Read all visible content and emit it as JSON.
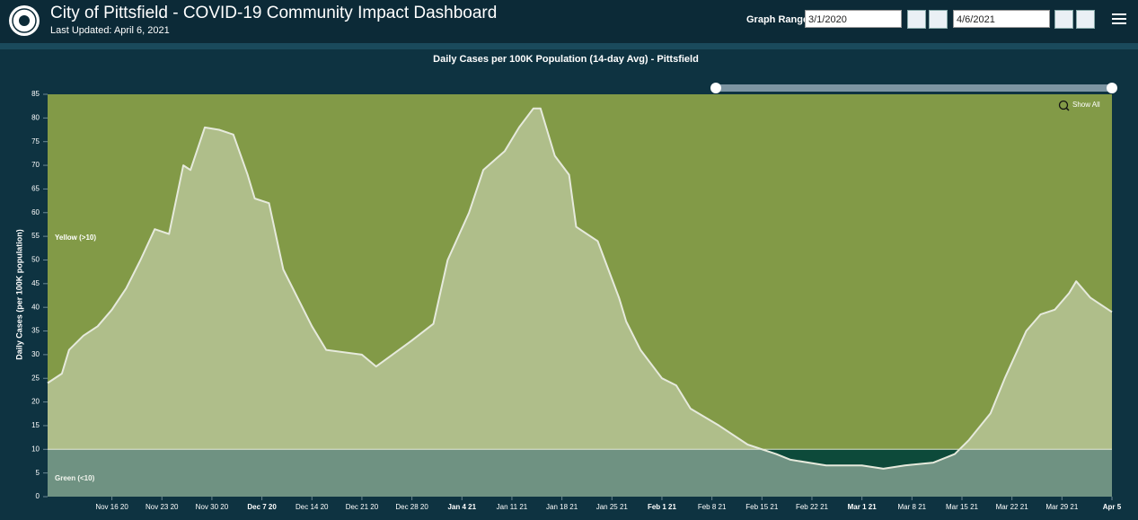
{
  "header": {
    "title": "City of Pittsfield - COVID-19 Community Impact Dashboard",
    "last_updated": "Last Updated: April 6, 2021",
    "range_label": "Graph Range",
    "range_start": "3/1/2020",
    "range_end": "4/6/2021"
  },
  "chart_data": {
    "type": "area",
    "title": "Daily Cases per 100K Population (14-day Avg) - Pittsfield",
    "y_label": "Daily Cases (per 100K population)",
    "zoom_button": "Show All",
    "x": [
      "2020-11-07",
      "2020-11-09",
      "2020-11-10",
      "2020-11-12",
      "2020-11-14",
      "2020-11-16",
      "2020-11-18",
      "2020-11-20",
      "2020-11-22",
      "2020-11-24",
      "2020-11-26",
      "2020-11-27",
      "2020-11-29",
      "2020-12-01",
      "2020-12-03",
      "2020-12-05",
      "2020-12-06",
      "2020-12-08",
      "2020-12-10",
      "2020-12-14",
      "2020-12-16",
      "2020-12-21",
      "2020-12-23",
      "2020-12-28",
      "2020-12-31",
      "2021-01-02",
      "2021-01-05",
      "2021-01-07",
      "2021-01-10",
      "2021-01-12",
      "2021-01-14",
      "2021-01-15",
      "2021-01-17",
      "2021-01-19",
      "2021-01-20",
      "2021-01-23",
      "2021-01-26",
      "2021-01-27",
      "2021-01-29",
      "2021-02-01",
      "2021-02-03",
      "2021-02-05",
      "2021-02-09",
      "2021-02-13",
      "2021-02-17",
      "2021-02-19",
      "2021-02-24",
      "2021-03-01",
      "2021-03-04",
      "2021-03-07",
      "2021-03-11",
      "2021-03-14",
      "2021-03-16",
      "2021-03-19",
      "2021-03-21",
      "2021-03-24",
      "2021-03-26",
      "2021-03-28",
      "2021-03-30",
      "2021-03-31",
      "2021-04-02",
      "2021-04-05"
    ],
    "series": [
      {
        "name": "Pittsfield",
        "color": "#e6eadc",
        "values": [
          24,
          26,
          31,
          34,
          36,
          39.5,
          44,
          50,
          56.5,
          55.5,
          70,
          69,
          78,
          77.5,
          76.5,
          68,
          63,
          62,
          48,
          36,
          31,
          30,
          27.5,
          33,
          36.5,
          50,
          60,
          69,
          73,
          78,
          82,
          82,
          72,
          68,
          57,
          54,
          42,
          37,
          31,
          25,
          23.5,
          18.6,
          15,
          11,
          9,
          7.8,
          6.6,
          6.6,
          5.9,
          6.6,
          7.2,
          9,
          12,
          17.6,
          25,
          35,
          38.5,
          39.5,
          43,
          45.5,
          42,
          39
        ]
      }
    ],
    "bands": [
      {
        "from": 0,
        "to": 10,
        "label": "Green (<10)",
        "color": "#0d4a3a"
      },
      {
        "from": 10,
        "to": 85,
        "label": "Yellow (>10)",
        "color": "#829a47"
      }
    ],
    "xlim": [
      "2020-11-07",
      "2021-04-05"
    ],
    "xticks": [
      {
        "value": "2020-11-16",
        "label": "Nov 16 20"
      },
      {
        "value": "2020-11-23",
        "label": "Nov 23 20"
      },
      {
        "value": "2020-11-30",
        "label": "Nov 30 20"
      },
      {
        "value": "2020-12-07",
        "label": "Dec 7 20"
      },
      {
        "value": "2020-12-14",
        "label": "Dec 14 20"
      },
      {
        "value": "2020-12-21",
        "label": "Dec 21 20"
      },
      {
        "value": "2020-12-28",
        "label": "Dec 28 20"
      },
      {
        "value": "2021-01-04",
        "label": "Jan 4 21"
      },
      {
        "value": "2021-01-11",
        "label": "Jan 11 21"
      },
      {
        "value": "2021-01-18",
        "label": "Jan 18 21"
      },
      {
        "value": "2021-01-25",
        "label": "Jan 25 21"
      },
      {
        "value": "2021-02-01",
        "label": "Feb 1 21"
      },
      {
        "value": "2021-02-08",
        "label": "Feb 8 21"
      },
      {
        "value": "2021-02-15",
        "label": "Feb 15 21"
      },
      {
        "value": "2021-02-22",
        "label": "Feb 22 21"
      },
      {
        "value": "2021-03-01",
        "label": "Mar 1 21"
      },
      {
        "value": "2021-03-08",
        "label": "Mar 8 21"
      },
      {
        "value": "2021-03-15",
        "label": "Mar 15 21"
      },
      {
        "value": "2021-03-22",
        "label": "Mar 22 21"
      },
      {
        "value": "2021-03-29",
        "label": "Mar 29 21"
      },
      {
        "value": "2021-04-05",
        "label": "Apr 5"
      }
    ],
    "ylim": [
      0,
      85
    ],
    "yticks": [
      0,
      5,
      10,
      15,
      20,
      25,
      30,
      35,
      40,
      45,
      50,
      55,
      60,
      65,
      70,
      75,
      80,
      85
    ]
  }
}
